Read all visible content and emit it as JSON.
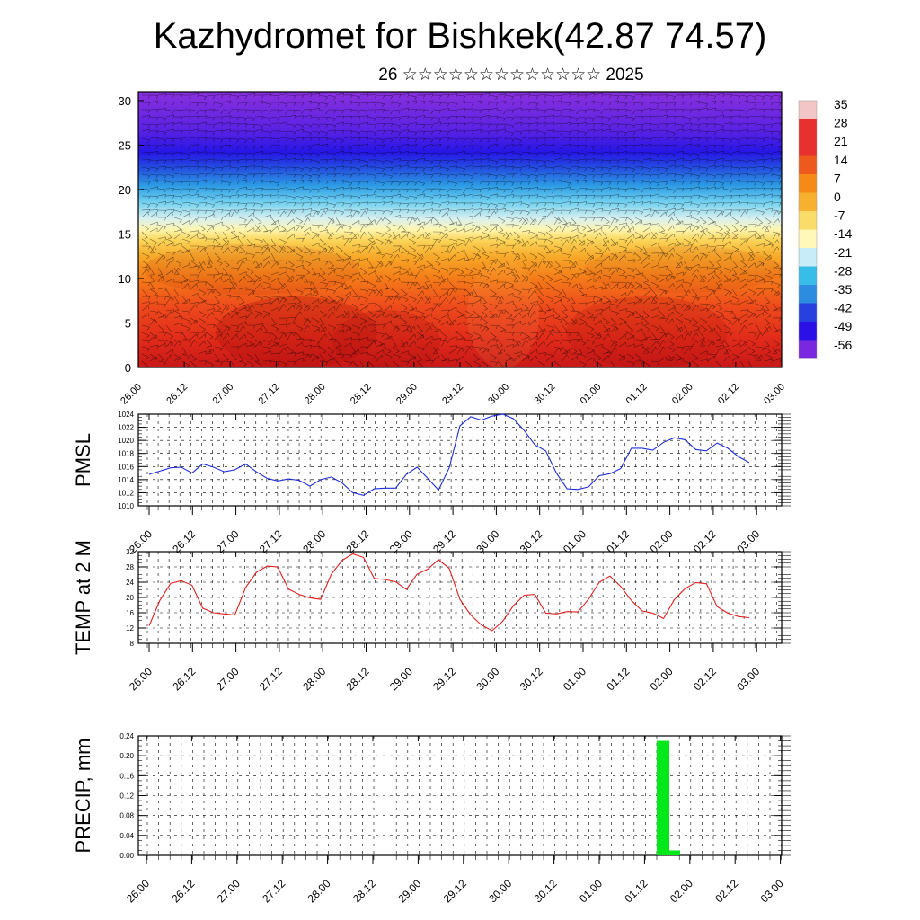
{
  "title": "Kazhydromet for Bishkek(42.87 74.57)",
  "subtitle": "26 ☆☆☆☆☆☆☆☆☆☆☆☆☆ 2025",
  "time_ticks": [
    "26.00",
    "26.12",
    "27.00",
    "27.12",
    "28.00",
    "28.12",
    "29.00",
    "29.12",
    "30.00",
    "30.12",
    "01.00",
    "01.12",
    "02.00",
    "02.12",
    "03.00"
  ],
  "chart_data": [
    {
      "type": "heatmap",
      "title": "",
      "xlabel": "",
      "ylabel": "",
      "x": [
        "26.00",
        "26.12",
        "27.00",
        "27.12",
        "28.00",
        "28.12",
        "29.00",
        "29.12",
        "30.00",
        "30.12",
        "01.00",
        "01.12",
        "02.00",
        "02.12",
        "03.00"
      ],
      "ylim": [
        0,
        31
      ],
      "yticks": [
        0,
        5,
        10,
        15,
        20,
        25,
        30
      ],
      "colorbar_labels": [
        "35",
        "28",
        "21",
        "14",
        "7",
        "0",
        "-7",
        "-14",
        "-21",
        "-28",
        "-35",
        "-42",
        "-49",
        "-56"
      ],
      "colorbar_colors": [
        "#f2c6c6",
        "#e83030",
        "#e83030",
        "#ee5a1e",
        "#f58a18",
        "#f7b030",
        "#f9dc6a",
        "#fff8b8",
        "#c8ecf8",
        "#38bce8",
        "#2c8de0",
        "#2840e0",
        "#2c10e8",
        "#7a28e0"
      ],
      "grid": false,
      "legend": "right"
    },
    {
      "type": "line",
      "ylabel": "PMSL",
      "ylim": [
        1010,
        1024
      ],
      "yticks": [
        1010,
        1012,
        1014,
        1016,
        1018,
        1020,
        1022,
        1024
      ],
      "grid": true,
      "series": [
        {
          "color": "#1f2ed8",
          "values": [
            1014.8,
            1015.3,
            1015.8,
            1015.9,
            1015.0,
            1016.4,
            1015.9,
            1015.2,
            1015.5,
            1016.4,
            1015.2,
            1014.2,
            1013.8,
            1014.1,
            1013.9,
            1013.0,
            1014.0,
            1014.4,
            1013.5,
            1012.0,
            1011.6,
            1012.6,
            1012.7,
            1012.7,
            1014.8,
            1015.9,
            1014.2,
            1012.4,
            1015.8,
            1022.2,
            1023.6,
            1023.1,
            1023.7,
            1024.0,
            1023.3,
            1021.5,
            1019.3,
            1018.4,
            1015.0,
            1012.6,
            1012.5,
            1012.9,
            1014.6,
            1014.9,
            1015.7,
            1018.8,
            1018.8,
            1018.5,
            1019.7,
            1020.4,
            1020.1,
            1018.6,
            1018.4,
            1019.6,
            1018.8,
            1017.5,
            1016.6
          ]
        }
      ]
    },
    {
      "type": "line",
      "ylabel": "TEMP at 2 M",
      "ylim": [
        8,
        32
      ],
      "yticks": [
        8,
        12,
        16,
        20,
        24,
        28,
        32
      ],
      "grid": true,
      "series": [
        {
          "color": "#e02020",
          "values": [
            12.6,
            19.2,
            23.7,
            24.4,
            23.2,
            17.2,
            16.0,
            15.7,
            15.4,
            22.6,
            26.6,
            28.2,
            28.0,
            22.2,
            20.8,
            19.9,
            19.5,
            26.1,
            29.7,
            31.4,
            30.5,
            25.0,
            24.7,
            24.1,
            22.1,
            26.1,
            27.4,
            29.9,
            27.6,
            19.5,
            15.4,
            12.8,
            11.3,
            13.8,
            17.9,
            20.6,
            20.8,
            15.9,
            15.7,
            16.3,
            16.2,
            19.5,
            24.0,
            25.6,
            22.9,
            19.2,
            16.5,
            15.9,
            14.5,
            19.4,
            22.3,
            23.9,
            23.6,
            17.6,
            15.9,
            15.0,
            14.7
          ]
        }
      ]
    },
    {
      "type": "bar",
      "ylabel": "PRECIP, mm",
      "ylim": [
        0,
        0.24
      ],
      "yticks": [
        "0.00",
        "0.04",
        "0.08",
        "0.12",
        "0.16",
        "0.20",
        "0.24"
      ],
      "grid": true,
      "color": "#00e81a",
      "bars": [
        {
          "x": "01.15",
          "value": 0.23
        },
        {
          "x": "01.18",
          "value": 0.01
        }
      ]
    }
  ]
}
